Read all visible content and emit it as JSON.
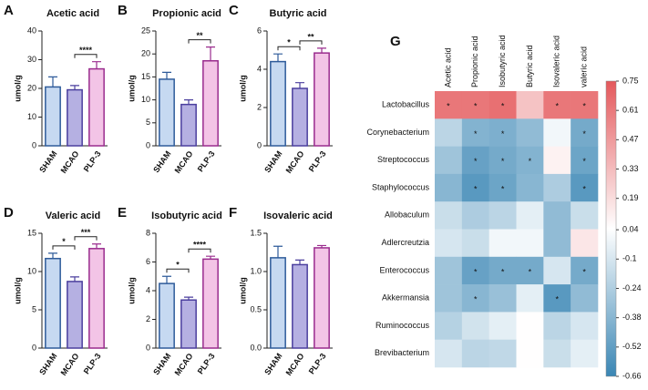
{
  "chart_data": [
    {
      "type": "bar",
      "panel": "A",
      "title": "Acetic acid",
      "ylabel": "umol/g",
      "categories": [
        "SHAM",
        "MCAO",
        "PLP-3"
      ],
      "values": [
        20.5,
        19.5,
        26.8
      ],
      "errors": [
        3.5,
        1.5,
        2.5
      ],
      "colors": [
        "#c6d9f1",
        "#b5b0e2",
        "#f3c4e6"
      ],
      "edge_colors": [
        "#2e5b9a",
        "#4b3f9e",
        "#9a2c8e"
      ],
      "ylim": [
        0,
        40
      ],
      "yticks": [
        0,
        10,
        20,
        30,
        40
      ],
      "significance": [
        {
          "groups": [
            "MCAO",
            "PLP-3"
          ],
          "label": "****"
        }
      ]
    },
    {
      "type": "bar",
      "panel": "B",
      "title": "Propionic acid",
      "ylabel": "umol/g",
      "categories": [
        "SHAM",
        "MCAO",
        "PLP-3"
      ],
      "values": [
        14.5,
        9,
        18.5
      ],
      "errors": [
        1.5,
        1,
        3
      ],
      "colors": [
        "#c6d9f1",
        "#b5b0e2",
        "#f3c4e6"
      ],
      "edge_colors": [
        "#2e5b9a",
        "#4b3f9e",
        "#9a2c8e"
      ],
      "ylim": [
        0,
        25
      ],
      "yticks": [
        0,
        5,
        10,
        15,
        20,
        25
      ],
      "significance": [
        {
          "groups": [
            "MCAO",
            "PLP-3"
          ],
          "label": "**"
        }
      ]
    },
    {
      "type": "bar",
      "panel": "C",
      "title": "Butyric acid",
      "ylabel": "umol/g",
      "categories": [
        "SHAM",
        "MCAO",
        "PLP-3"
      ],
      "values": [
        4.4,
        3.0,
        4.85
      ],
      "errors": [
        0.4,
        0.3,
        0.25
      ],
      "colors": [
        "#c6d9f1",
        "#b5b0e2",
        "#f3c4e6"
      ],
      "edge_colors": [
        "#2e5b9a",
        "#4b3f9e",
        "#9a2c8e"
      ],
      "ylim": [
        0,
        6
      ],
      "yticks": [
        0,
        2,
        4,
        6
      ],
      "significance": [
        {
          "groups": [
            "SHAM",
            "MCAO"
          ],
          "label": "*"
        },
        {
          "groups": [
            "MCAO",
            "PLP-3"
          ],
          "label": "**"
        }
      ]
    },
    {
      "type": "bar",
      "panel": "D",
      "title": "Valeric acid",
      "ylabel": "umol/g",
      "categories": [
        "SHAM",
        "MCAO",
        "PLP-3"
      ],
      "values": [
        11.7,
        8.7,
        13.0
      ],
      "errors": [
        0.7,
        0.6,
        0.6
      ],
      "colors": [
        "#c6d9f1",
        "#b5b0e2",
        "#f3c4e6"
      ],
      "edge_colors": [
        "#2e5b9a",
        "#4b3f9e",
        "#9a2c8e"
      ],
      "ylim": [
        0,
        15
      ],
      "yticks": [
        0,
        5,
        10,
        15
      ],
      "significance": [
        {
          "groups": [
            "SHAM",
            "MCAO"
          ],
          "label": "*"
        },
        {
          "groups": [
            "MCAO",
            "PLP-3"
          ],
          "label": "***"
        }
      ]
    },
    {
      "type": "bar",
      "panel": "E",
      "title": "Isobutyric acid",
      "ylabel": "umol/g",
      "categories": [
        "SHAM",
        "MCAO",
        "PLP-3"
      ],
      "values": [
        4.5,
        3.35,
        6.2
      ],
      "errors": [
        0.5,
        0.2,
        0.2
      ],
      "colors": [
        "#c6d9f1",
        "#b5b0e2",
        "#f3c4e6"
      ],
      "edge_colors": [
        "#2e5b9a",
        "#4b3f9e",
        "#9a2c8e"
      ],
      "ylim": [
        0,
        8
      ],
      "yticks": [
        0,
        2,
        4,
        6,
        8
      ],
      "significance": [
        {
          "groups": [
            "SHAM",
            "MCAO"
          ],
          "label": "*"
        },
        {
          "groups": [
            "MCAO",
            "PLP-3"
          ],
          "label": "****"
        }
      ]
    },
    {
      "type": "bar",
      "panel": "F",
      "title": "Isovaleric acid",
      "ylabel": "umol/g",
      "categories": [
        "SHAM",
        "MCAO",
        "PLP-3"
      ],
      "values": [
        1.18,
        1.09,
        1.31
      ],
      "errors": [
        0.15,
        0.06,
        0.03
      ],
      "colors": [
        "#c6d9f1",
        "#b5b0e2",
        "#f3c4e6"
      ],
      "edge_colors": [
        "#2e5b9a",
        "#4b3f9e",
        "#9a2c8e"
      ],
      "ylim": [
        0,
        1.5
      ],
      "yticks": [
        {
          "value": 0,
          "label": "0.0"
        },
        0.5,
        {
          "value": 1,
          "label": "1.0"
        },
        1.5
      ],
      "significance": []
    },
    {
      "type": "heatmap",
      "panel": "G",
      "x_categories": [
        "Acetic acid",
        "Propionic acid",
        "Isobutyric acid",
        "Butyric acid",
        "Isovaleric acid",
        "valeric acid"
      ],
      "y_categories": [
        "Lactobacillus",
        "Corynebacterium",
        "Streptococcus",
        "Staphylococcus",
        "Allobaculum",
        "Adlercreutzia",
        "Enterococcus",
        "Akkermansia",
        "Ruminococcus",
        "Brevibacterium"
      ],
      "values": [
        [
          0.62,
          0.62,
          0.65,
          0.3,
          0.62,
          0.62
        ],
        [
          -0.2,
          -0.4,
          -0.42,
          -0.35,
          0.0,
          -0.45
        ],
        [
          -0.3,
          -0.5,
          -0.45,
          -0.4,
          0.1,
          -0.48
        ],
        [
          -0.38,
          -0.55,
          -0.48,
          -0.38,
          -0.25,
          -0.55
        ],
        [
          -0.15,
          -0.25,
          -0.2,
          -0.05,
          -0.35,
          -0.15
        ],
        [
          -0.1,
          -0.15,
          0.0,
          0.0,
          -0.35,
          0.15
        ],
        [
          -0.3,
          -0.5,
          -0.45,
          -0.45,
          -0.1,
          -0.45
        ],
        [
          -0.3,
          -0.38,
          -0.32,
          -0.05,
          -0.55,
          -0.35
        ],
        [
          -0.22,
          -0.12,
          -0.05,
          0.05,
          -0.2,
          -0.1
        ],
        [
          -0.1,
          -0.2,
          -0.18,
          0.05,
          -0.15,
          -0.05
        ]
      ],
      "annotations": [
        [
          "*",
          "*",
          "*",
          null,
          "*",
          "*"
        ],
        [
          null,
          "*",
          "*",
          null,
          null,
          "*"
        ],
        [
          null,
          "*",
          "*",
          "*",
          null,
          "*"
        ],
        [
          null,
          "*",
          "*",
          null,
          null,
          "*"
        ],
        [
          null,
          null,
          null,
          null,
          null,
          null
        ],
        [
          null,
          null,
          null,
          null,
          null,
          null
        ],
        [
          null,
          "*",
          "*",
          "*",
          null,
          "*"
        ],
        [
          null,
          "*",
          null,
          null,
          "*",
          null
        ],
        [
          null,
          null,
          null,
          null,
          null,
          null
        ],
        [
          null,
          null,
          null,
          null,
          null,
          null
        ]
      ],
      "zlim": [
        -0.66,
        0.75
      ],
      "colorbar_ticks": [
        0.75,
        0.61,
        0.47,
        0.33,
        0.19,
        0.04,
        -0.1,
        -0.24,
        -0.38,
        -0.52,
        -0.66
      ],
      "colormap": [
        "#3a86b4",
        "#ffffff",
        "#e4585b"
      ]
    }
  ]
}
